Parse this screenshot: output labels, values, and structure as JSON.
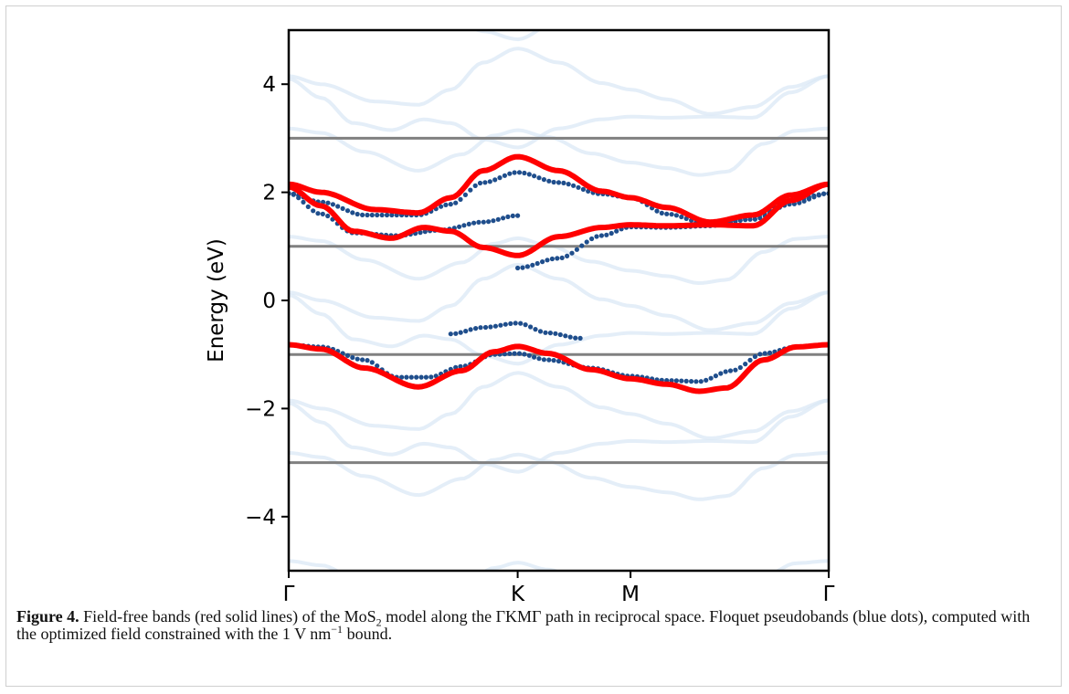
{
  "chart_data": {
    "type": "line",
    "title": "",
    "xlabel": "",
    "ylabel": "Energy (eV)",
    "ylim": [
      -5,
      5
    ],
    "yticks": [
      -4,
      -2,
      0,
      2,
      4
    ],
    "ytick_labels": [
      "−4",
      "−2",
      "0",
      "2",
      "4"
    ],
    "x_ticks": [
      {
        "label": "Γ",
        "k": 0.0
      },
      {
        "label": "K",
        "k": 0.424
      },
      {
        "label": "M",
        "k": 0.633
      },
      {
        "label": "Γ",
        "k": 1.0
      }
    ],
    "xlim": [
      0,
      1
    ],
    "reference_lines": [
      -3,
      -1,
      1,
      3
    ],
    "colors": {
      "field_free": "#ff0000",
      "floquet": "#1f4e8c",
      "reference": "#808080"
    },
    "series": [
      {
        "name": "Field-free bands (red solid lines)",
        "kind": "line",
        "bands": [
          {
            "k": [
              0,
              0.06,
              0.16,
              0.24,
              0.3,
              0.36,
              0.424,
              0.5,
              0.58,
              0.633,
              0.7,
              0.78,
              0.86,
              0.93,
              1.0
            ],
            "e": [
              2.15,
              2.0,
              1.68,
              1.62,
              1.9,
              2.4,
              2.66,
              2.4,
              2.02,
              1.9,
              1.72,
              1.45,
              1.58,
              1.95,
              2.15
            ]
          },
          {
            "k": [
              0,
              0.06,
              0.12,
              0.19,
              0.25,
              0.3,
              0.36,
              0.424,
              0.5,
              0.58,
              0.633,
              0.7,
              0.78,
              0.86,
              0.93,
              1.0
            ],
            "e": [
              2.1,
              1.75,
              1.28,
              1.15,
              1.35,
              1.28,
              0.98,
              0.83,
              1.18,
              1.35,
              1.4,
              1.38,
              1.4,
              1.38,
              1.85,
              2.15
            ]
          },
          {
            "k": [
              0,
              0.06,
              0.14,
              0.24,
              0.32,
              0.38,
              0.424,
              0.48,
              0.56,
              0.633,
              0.7,
              0.76,
              0.81,
              0.88,
              0.94,
              1.0
            ],
            "e": [
              -0.82,
              -0.9,
              -1.25,
              -1.6,
              -1.3,
              -0.95,
              -0.85,
              -0.98,
              -1.28,
              -1.45,
              -1.55,
              -1.68,
              -1.62,
              -1.1,
              -0.86,
              -0.82
            ]
          }
        ]
      },
      {
        "name": "Floquet pseudobands (blue dots)",
        "kind": "dots",
        "bands": [
          {
            "k": [
              0,
              0.06,
              0.14,
              0.24,
              0.3,
              0.36,
              0.424,
              0.5,
              0.58,
              0.633,
              0.7,
              0.78,
              0.86,
              0.93,
              1.0
            ],
            "e": [
              1.98,
              1.82,
              1.58,
              1.58,
              1.78,
              2.18,
              2.37,
              2.18,
              1.97,
              1.9,
              1.6,
              1.4,
              1.5,
              1.78,
              1.98
            ]
          },
          {
            "k": [
              0,
              0.06,
              0.12,
              0.2,
              0.28,
              0.36,
              0.424
            ],
            "e": [
              1.98,
              1.6,
              1.25,
              1.2,
              1.3,
              1.45,
              1.57
            ]
          },
          {
            "k": [
              0.424,
              0.5,
              0.58,
              0.633,
              0.7,
              0.78,
              0.86,
              0.93,
              1.0
            ],
            "e": [
              0.6,
              0.78,
              1.2,
              1.36,
              1.35,
              1.38,
              1.55,
              1.85,
              1.98
            ]
          },
          {
            "k": [
              0.3,
              0.36,
              0.424,
              0.48,
              0.54
            ],
            "e": [
              -0.62,
              -0.5,
              -0.42,
              -0.6,
              -0.7
            ]
          },
          {
            "k": [
              0,
              0.06,
              0.14,
              0.2,
              0.26,
              0.32,
              0.38,
              0.424,
              0.48,
              0.56,
              0.633,
              0.7,
              0.76,
              0.82,
              0.88,
              0.94,
              1.0
            ],
            "e": [
              -0.82,
              -0.86,
              -1.1,
              -1.42,
              -1.42,
              -1.22,
              -1.0,
              -0.98,
              -1.1,
              -1.25,
              -1.4,
              -1.48,
              -1.5,
              -1.3,
              -0.98,
              -0.86,
              -0.82
            ]
          }
        ]
      }
    ]
  },
  "caption": {
    "label": "Figure 4.",
    "text_1": " Field-free bands (red solid lines) of the MoS",
    "sub": "2",
    "text_2": " model along the ΓKΜΓ path in reciprocal space. Floquet pseudobands (blue dots), computed with the optimized field constrained with the 1 V nm",
    "sup": "−1",
    "text_3": " bound."
  }
}
